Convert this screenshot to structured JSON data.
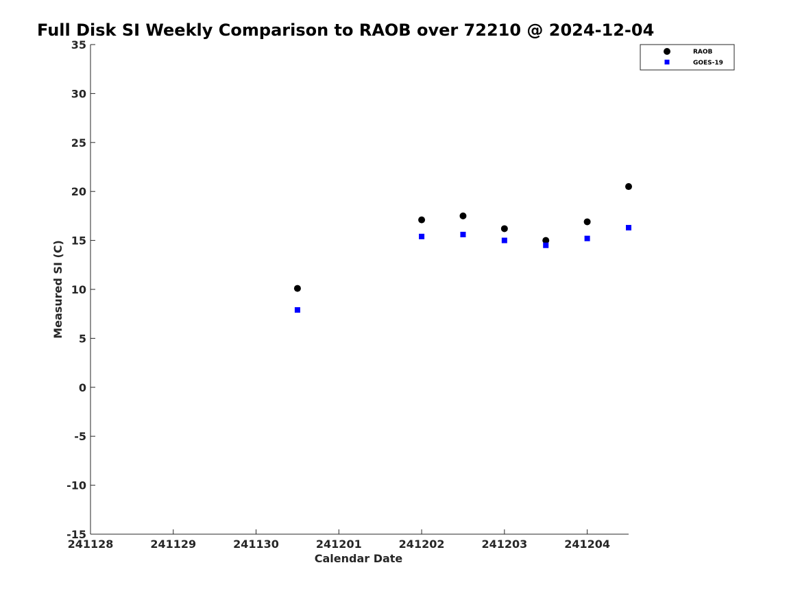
{
  "chart_data": {
    "type": "scatter",
    "title": "Full Disk SI Weekly Comparison to RAOB over 72210 @ 2024-12-04",
    "xlabel": "Calendar Date",
    "ylabel": "Measured SI (C)",
    "x_tick_labels": [
      "241128",
      "241129",
      "241130",
      "241201",
      "241202",
      "241203",
      "241204"
    ],
    "y_ticks": [
      35,
      30,
      25,
      20,
      15,
      10,
      5,
      0,
      -5,
      -10,
      -15
    ],
    "y_tick_labels": [
      "35",
      "30",
      "25",
      "20",
      "15",
      "10",
      "5",
      "0",
      "-5",
      "-10",
      "-15"
    ],
    "xlim": [
      "2024-11-28 00:00",
      "2024-12-04 12:00"
    ],
    "ylim": [
      -15,
      35
    ],
    "grid": false,
    "legend_placement": "top-right",
    "series": [
      {
        "name": "RAOB",
        "marker": "circle",
        "color": "#000000",
        "points": [
          {
            "x": "2024-11-30 12:00",
            "y": 10.1
          },
          {
            "x": "2024-12-02 00:00",
            "y": 17.1
          },
          {
            "x": "2024-12-02 12:00",
            "y": 17.5
          },
          {
            "x": "2024-12-03 00:00",
            "y": 16.2
          },
          {
            "x": "2024-12-03 12:00",
            "y": 15.0
          },
          {
            "x": "2024-12-04 00:00",
            "y": 16.9
          },
          {
            "x": "2024-12-04 12:00",
            "y": 20.5
          }
        ]
      },
      {
        "name": "GOES-19",
        "marker": "square",
        "color": "#0000ff",
        "points": [
          {
            "x": "2024-11-30 12:00",
            "y": 7.9
          },
          {
            "x": "2024-12-02 00:00",
            "y": 15.4
          },
          {
            "x": "2024-12-02 12:00",
            "y": 15.6
          },
          {
            "x": "2024-12-03 00:00",
            "y": 15.0
          },
          {
            "x": "2024-12-03 12:00",
            "y": 14.5
          },
          {
            "x": "2024-12-04 00:00",
            "y": 15.2
          },
          {
            "x": "2024-12-04 12:00",
            "y": 16.3
          }
        ]
      }
    ]
  }
}
